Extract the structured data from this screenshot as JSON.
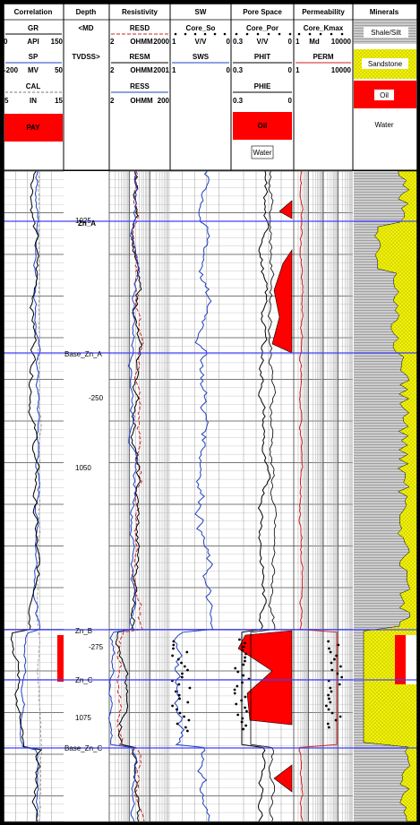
{
  "tracks": [
    {
      "title": "Correlation",
      "curves": [
        {
          "name": "GR",
          "min": "0",
          "unit": "API",
          "max": "150"
        },
        {
          "name": "SP",
          "min": "-200",
          "unit": "MV",
          "max": "50"
        },
        {
          "name": "CAL",
          "min": "5",
          "unit": "IN",
          "max": "15"
        }
      ],
      "fill": "PAY"
    },
    {
      "title": "Depth",
      "line1": "<MD",
      "line2": "TVDSS>"
    },
    {
      "title": "Resistivity",
      "curves": [
        {
          "name": "RESD",
          "min": "2",
          "unit": "OHMM",
          "max": "2000"
        },
        {
          "name": "RESM",
          "min": "2",
          "unit": "OHMM",
          "max": "2001"
        },
        {
          "name": "RESS",
          "min": "2",
          "unit": "OHMM",
          "max": "200"
        }
      ]
    },
    {
      "title": "SW",
      "curves": [
        {
          "name": "Core_So",
          "min": "1",
          "unit": "V/V",
          "max": "0"
        },
        {
          "name": "SWS",
          "min": "1",
          "unit": "",
          "max": "0"
        }
      ]
    },
    {
      "title": "Pore Space",
      "curves": [
        {
          "name": "Core_Por",
          "min": "0.3",
          "unit": "V/V",
          "max": "0"
        },
        {
          "name": "PHIT",
          "min": "0.3",
          "unit": "",
          "max": "0"
        },
        {
          "name": "PHIE",
          "min": "0.3",
          "unit": "",
          "max": "0"
        }
      ],
      "fills": [
        "Oil",
        "Water"
      ]
    },
    {
      "title": "Permeability",
      "curves": [
        {
          "name": "Core_Kmax",
          "min": "1",
          "unit": "Md",
          "max": "10000"
        },
        {
          "name": "PERM",
          "min": "1",
          "unit": "",
          "max": "10000"
        }
      ]
    },
    {
      "title": "Minerals",
      "fills": [
        "Shale/Silt",
        "Sandstone",
        "Oil",
        "Water"
      ]
    }
  ],
  "depth_labels": [
    {
      "text": "1025",
      "kind": "md"
    },
    {
      "text": "-250",
      "kind": "tvdss"
    },
    {
      "text": "1050",
      "kind": "md"
    },
    {
      "text": "-275",
      "kind": "tvdss"
    },
    {
      "text": "1075",
      "kind": "md"
    }
  ],
  "chart_data": {
    "type": "well_log",
    "md_tick_labels": [
      1025,
      1050,
      1075
    ],
    "tvdss_tick_labels": [
      -250,
      -275
    ],
    "zone_tops": [
      "Zn_A",
      "Base_Zn_A",
      "Zn_B",
      "Zn_C",
      "Base_Zn_C"
    ],
    "colors": {
      "oil": "#ff0000",
      "sand": "#f0f000",
      "shale": "#909090",
      "zone_line": "#4040ff",
      "resd": "#d02020",
      "gr": "#000000",
      "sp": "#2040c0"
    }
  }
}
